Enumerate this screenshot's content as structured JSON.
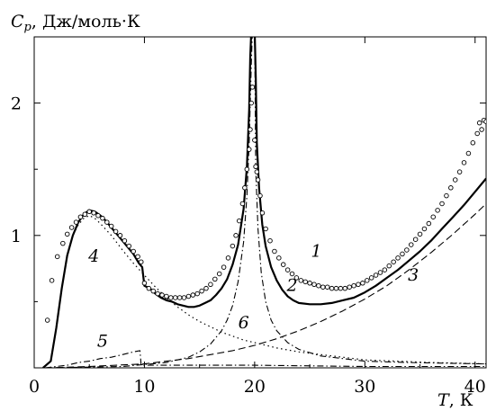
{
  "chart_data": {
    "type": "line",
    "title": "",
    "y_symbol": "C",
    "y_subscript": "p",
    "ylabel": ", Дж/моль·К",
    "x_symbol": "T",
    "xlabel": ", К",
    "xlim": [
      0,
      41
    ],
    "ylim": [
      0,
      2.5
    ],
    "xticks": [
      0,
      10,
      20,
      30,
      40
    ],
    "yticks": [
      1,
      2
    ],
    "xtick_labels": [
      "0",
      "10",
      "20",
      "30",
      "40"
    ],
    "ytick_labels": [
      "1",
      "2"
    ],
    "grid": false,
    "legend": "none",
    "series": [
      {
        "label": "1",
        "style": "open-circles",
        "points": [
          [
            1.2,
            0.36
          ],
          [
            1.6,
            0.66
          ],
          [
            2.1,
            0.84
          ],
          [
            2.6,
            0.94
          ],
          [
            3.0,
            1.01
          ],
          [
            3.4,
            1.06
          ],
          [
            3.8,
            1.1
          ],
          [
            4.2,
            1.14
          ],
          [
            4.6,
            1.16
          ],
          [
            5.0,
            1.18
          ],
          [
            5.4,
            1.17
          ],
          [
            5.8,
            1.15
          ],
          [
            6.2,
            1.13
          ],
          [
            6.6,
            1.1
          ],
          [
            7.0,
            1.07
          ],
          [
            7.4,
            1.03
          ],
          [
            7.8,
            1.0
          ],
          [
            8.2,
            0.96
          ],
          [
            8.6,
            0.92
          ],
          [
            9.0,
            0.88
          ],
          [
            9.4,
            0.84
          ],
          [
            9.7,
            0.8
          ],
          [
            10.0,
            0.64
          ],
          [
            10.4,
            0.6
          ],
          [
            10.8,
            0.58
          ],
          [
            11.2,
            0.56
          ],
          [
            11.6,
            0.55
          ],
          [
            12.0,
            0.54
          ],
          [
            12.4,
            0.53
          ],
          [
            12.8,
            0.53
          ],
          [
            13.2,
            0.53
          ],
          [
            13.6,
            0.53
          ],
          [
            14.0,
            0.54
          ],
          [
            14.4,
            0.55
          ],
          [
            14.8,
            0.56
          ],
          [
            15.2,
            0.58
          ],
          [
            15.6,
            0.6
          ],
          [
            16.0,
            0.63
          ],
          [
            16.4,
            0.67
          ],
          [
            16.8,
            0.71
          ],
          [
            17.2,
            0.76
          ],
          [
            17.6,
            0.83
          ],
          [
            18.0,
            0.92
          ],
          [
            18.3,
            1.0
          ],
          [
            18.6,
            1.11
          ],
          [
            18.9,
            1.24
          ],
          [
            19.1,
            1.36
          ],
          [
            19.3,
            1.5
          ],
          [
            19.5,
            1.65
          ],
          [
            19.6,
            1.8
          ],
          [
            19.7,
            2.0
          ],
          [
            19.8,
            2.12
          ],
          [
            20.0,
            1.72
          ],
          [
            20.1,
            1.52
          ],
          [
            20.2,
            1.48
          ],
          [
            20.3,
            1.42
          ],
          [
            20.5,
            1.3
          ],
          [
            20.7,
            1.17
          ],
          [
            21.0,
            1.05
          ],
          [
            21.4,
            0.96
          ],
          [
            21.8,
            0.88
          ],
          [
            22.2,
            0.83
          ],
          [
            22.6,
            0.78
          ],
          [
            23.0,
            0.74
          ],
          [
            23.4,
            0.71
          ],
          [
            23.8,
            0.68
          ],
          [
            24.2,
            0.66
          ],
          [
            24.6,
            0.65
          ],
          [
            25.0,
            0.64
          ],
          [
            25.4,
            0.63
          ],
          [
            25.8,
            0.62
          ],
          [
            26.2,
            0.61
          ],
          [
            26.6,
            0.61
          ],
          [
            27.0,
            0.6
          ],
          [
            27.4,
            0.6
          ],
          [
            27.8,
            0.6
          ],
          [
            28.2,
            0.6
          ],
          [
            28.6,
            0.61
          ],
          [
            29.0,
            0.62
          ],
          [
            29.4,
            0.63
          ],
          [
            29.8,
            0.64
          ],
          [
            30.2,
            0.66
          ],
          [
            30.6,
            0.68
          ],
          [
            31.0,
            0.7
          ],
          [
            31.4,
            0.72
          ],
          [
            31.8,
            0.74
          ],
          [
            32.2,
            0.77
          ],
          [
            32.6,
            0.8
          ],
          [
            33.0,
            0.83
          ],
          [
            33.4,
            0.86
          ],
          [
            33.8,
            0.89
          ],
          [
            34.2,
            0.93
          ],
          [
            34.6,
            0.97
          ],
          [
            35.0,
            1.01
          ],
          [
            35.4,
            1.05
          ],
          [
            35.8,
            1.09
          ],
          [
            36.2,
            1.14
          ],
          [
            36.6,
            1.19
          ],
          [
            37.0,
            1.24
          ],
          [
            37.4,
            1.3
          ],
          [
            37.8,
            1.36
          ],
          [
            38.2,
            1.42
          ],
          [
            38.6,
            1.48
          ],
          [
            39.0,
            1.55
          ],
          [
            39.4,
            1.62
          ],
          [
            39.8,
            1.7
          ],
          [
            40.2,
            1.77
          ],
          [
            40.4,
            1.85
          ],
          [
            40.6,
            1.8
          ],
          [
            40.8,
            1.87
          ],
          [
            41.0,
            1.86
          ]
        ]
      },
      {
        "label": "2",
        "style": "solid-thick",
        "points": [
          [
            0.8,
            0.0
          ],
          [
            1.5,
            0.05
          ],
          [
            2.0,
            0.3
          ],
          [
            2.5,
            0.6
          ],
          [
            3.0,
            0.85
          ],
          [
            3.5,
            1.0
          ],
          [
            4.0,
            1.1
          ],
          [
            4.5,
            1.16
          ],
          [
            5.0,
            1.19
          ],
          [
            5.5,
            1.18
          ],
          [
            6.0,
            1.15
          ],
          [
            6.5,
            1.11
          ],
          [
            7.0,
            1.06
          ],
          [
            7.5,
            1.01
          ],
          [
            8.0,
            0.96
          ],
          [
            8.5,
            0.91
          ],
          [
            9.0,
            0.86
          ],
          [
            9.5,
            0.79
          ],
          [
            9.8,
            0.76
          ],
          [
            10.0,
            0.62
          ],
          [
            10.5,
            0.6
          ],
          [
            11.0,
            0.56
          ],
          [
            11.5,
            0.53
          ],
          [
            12.0,
            0.51
          ],
          [
            12.5,
            0.5
          ],
          [
            13.0,
            0.48
          ],
          [
            13.5,
            0.47
          ],
          [
            14.0,
            0.46
          ],
          [
            14.5,
            0.46
          ],
          [
            15.0,
            0.47
          ],
          [
            15.5,
            0.49
          ],
          [
            16.0,
            0.51
          ],
          [
            16.5,
            0.55
          ],
          [
            17.0,
            0.6
          ],
          [
            17.5,
            0.67
          ],
          [
            18.0,
            0.78
          ],
          [
            18.5,
            0.93
          ],
          [
            19.0,
            1.2
          ],
          [
            19.3,
            1.52
          ],
          [
            19.5,
            1.95
          ],
          [
            19.6,
            2.35
          ],
          [
            19.7,
            2.55
          ],
          [
            20.0,
            2.55
          ],
          [
            20.1,
            2.2
          ],
          [
            20.2,
            1.7
          ],
          [
            20.4,
            1.36
          ],
          [
            20.7,
            1.08
          ],
          [
            21.0,
            0.92
          ],
          [
            21.5,
            0.76
          ],
          [
            22.0,
            0.66
          ],
          [
            22.5,
            0.59
          ],
          [
            23.0,
            0.54
          ],
          [
            23.5,
            0.51
          ],
          [
            24.0,
            0.49
          ],
          [
            25.0,
            0.48
          ],
          [
            26.0,
            0.48
          ],
          [
            27.0,
            0.49
          ],
          [
            28.0,
            0.51
          ],
          [
            29.0,
            0.53
          ],
          [
            30.0,
            0.57
          ],
          [
            31.0,
            0.62
          ],
          [
            32.0,
            0.68
          ],
          [
            33.0,
            0.74
          ],
          [
            34.0,
            0.81
          ],
          [
            35.0,
            0.88
          ],
          [
            36.0,
            0.96
          ],
          [
            37.0,
            1.05
          ],
          [
            38.0,
            1.14
          ],
          [
            39.0,
            1.23
          ],
          [
            40.0,
            1.33
          ],
          [
            41.0,
            1.43
          ]
        ]
      },
      {
        "label": "3",
        "style": "dashed",
        "points": [
          [
            1.0,
            0.0
          ],
          [
            5.0,
            0.01
          ],
          [
            10.0,
            0.03
          ],
          [
            12.0,
            0.05
          ],
          [
            14.0,
            0.07
          ],
          [
            16.0,
            0.1
          ],
          [
            18.0,
            0.13
          ],
          [
            20.0,
            0.17
          ],
          [
            22.0,
            0.22
          ],
          [
            24.0,
            0.28
          ],
          [
            26.0,
            0.35
          ],
          [
            28.0,
            0.43
          ],
          [
            30.0,
            0.52
          ],
          [
            32.0,
            0.62
          ],
          [
            34.0,
            0.74
          ],
          [
            36.0,
            0.87
          ],
          [
            38.0,
            1.01
          ],
          [
            40.0,
            1.16
          ],
          [
            41.0,
            1.24
          ]
        ]
      },
      {
        "label": "4",
        "style": "dotted",
        "points": [
          [
            0.8,
            0.0
          ],
          [
            1.5,
            0.05
          ],
          [
            2.0,
            0.3
          ],
          [
            2.5,
            0.6
          ],
          [
            3.0,
            0.85
          ],
          [
            3.5,
            1.0
          ],
          [
            4.0,
            1.08
          ],
          [
            4.5,
            1.13
          ],
          [
            5.0,
            1.15
          ],
          [
            5.5,
            1.13
          ],
          [
            6.0,
            1.09
          ],
          [
            7.0,
            1.0
          ],
          [
            8.0,
            0.89
          ],
          [
            9.0,
            0.79
          ],
          [
            10.0,
            0.7
          ],
          [
            11.0,
            0.61
          ],
          [
            12.0,
            0.53
          ],
          [
            13.0,
            0.46
          ],
          [
            14.0,
            0.4
          ],
          [
            15.0,
            0.35
          ],
          [
            16.0,
            0.31
          ],
          [
            17.0,
            0.27
          ],
          [
            18.0,
            0.24
          ],
          [
            19.0,
            0.21
          ],
          [
            20.0,
            0.19
          ],
          [
            22.0,
            0.15
          ],
          [
            24.0,
            0.12
          ],
          [
            26.0,
            0.1
          ],
          [
            28.0,
            0.08
          ],
          [
            30.0,
            0.06
          ],
          [
            33.0,
            0.05
          ],
          [
            36.0,
            0.04
          ],
          [
            41.0,
            0.03
          ]
        ]
      },
      {
        "label": "5",
        "style": "dash-dot",
        "points": [
          [
            1.0,
            0.0
          ],
          [
            2.0,
            0.01
          ],
          [
            3.0,
            0.02
          ],
          [
            4.0,
            0.04
          ],
          [
            5.0,
            0.05
          ],
          [
            6.0,
            0.07
          ],
          [
            7.0,
            0.08
          ],
          [
            8.0,
            0.1
          ],
          [
            9.0,
            0.12
          ],
          [
            9.6,
            0.13
          ],
          [
            9.7,
            0.02
          ],
          [
            12.0,
            0.02
          ],
          [
            20.0,
            0.02
          ],
          [
            30.0,
            0.01
          ],
          [
            41.0,
            0.01
          ]
        ]
      },
      {
        "label": "6",
        "style": "dash-dot",
        "points": [
          [
            1.0,
            0.0
          ],
          [
            8.0,
            0.01
          ],
          [
            12.0,
            0.04
          ],
          [
            14.0,
            0.08
          ],
          [
            15.0,
            0.12
          ],
          [
            16.0,
            0.18
          ],
          [
            17.0,
            0.28
          ],
          [
            17.5,
            0.36
          ],
          [
            18.0,
            0.47
          ],
          [
            18.5,
            0.65
          ],
          [
            19.0,
            0.95
          ],
          [
            19.3,
            1.3
          ],
          [
            19.5,
            1.7
          ],
          [
            19.7,
            2.3
          ],
          [
            19.8,
            2.55
          ],
          [
            20.0,
            2.55
          ],
          [
            20.1,
            1.5
          ],
          [
            20.3,
            1.05
          ],
          [
            20.6,
            0.72
          ],
          [
            21.0,
            0.5
          ],
          [
            21.5,
            0.36
          ],
          [
            22.0,
            0.28
          ],
          [
            23.0,
            0.19
          ],
          [
            24.0,
            0.14
          ],
          [
            26.0,
            0.09
          ],
          [
            28.0,
            0.07
          ],
          [
            30.0,
            0.05
          ],
          [
            34.0,
            0.04
          ],
          [
            41.0,
            0.03
          ]
        ]
      }
    ],
    "annotations": [
      {
        "text": "1",
        "x": 25.6,
        "y": 0.84
      },
      {
        "text": "2",
        "x": 23.4,
        "y": 0.58
      },
      {
        "text": "3",
        "x": 34.4,
        "y": 0.66
      },
      {
        "text": "4",
        "x": 5.4,
        "y": 0.8
      },
      {
        "text": "5",
        "x": 6.2,
        "y": 0.16
      },
      {
        "text": "6",
        "x": 19.0,
        "y": 0.3
      }
    ]
  }
}
